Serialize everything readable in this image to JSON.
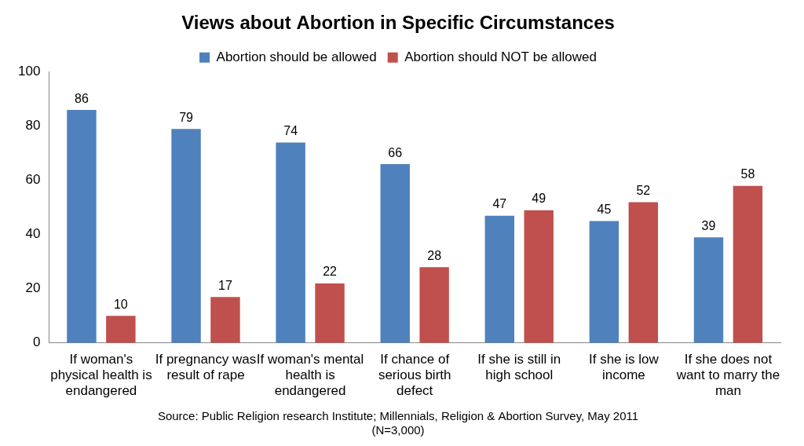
{
  "chart_data": {
    "type": "bar",
    "title": "Views about Abortion in Specific Circumstances",
    "categories": [
      "If woman's physical health is endangered",
      "If pregnancy was result of rape",
      "If woman's mental health is endangered",
      "If chance of serious birth defect",
      "If she is still in high school",
      "If she is low income",
      "If she does not want to marry the man"
    ],
    "series": [
      {
        "name": "Abortion should be allowed",
        "color": "#4f81bd",
        "values": [
          86,
          79,
          74,
          66,
          47,
          45,
          39
        ]
      },
      {
        "name": "Abortion should NOT be allowed",
        "color": "#c0504d",
        "values": [
          10,
          17,
          22,
          28,
          49,
          52,
          58
        ]
      }
    ],
    "ylim": [
      0,
      100
    ],
    "yticks": [
      0,
      20,
      40,
      60,
      80,
      100
    ],
    "grid": false,
    "legend": "top",
    "data_labels": true,
    "source": [
      "Source: Public Religion research Institute; Millennials, Religion & Abortion Survey, May 2011",
      "(N=3,000)"
    ]
  }
}
